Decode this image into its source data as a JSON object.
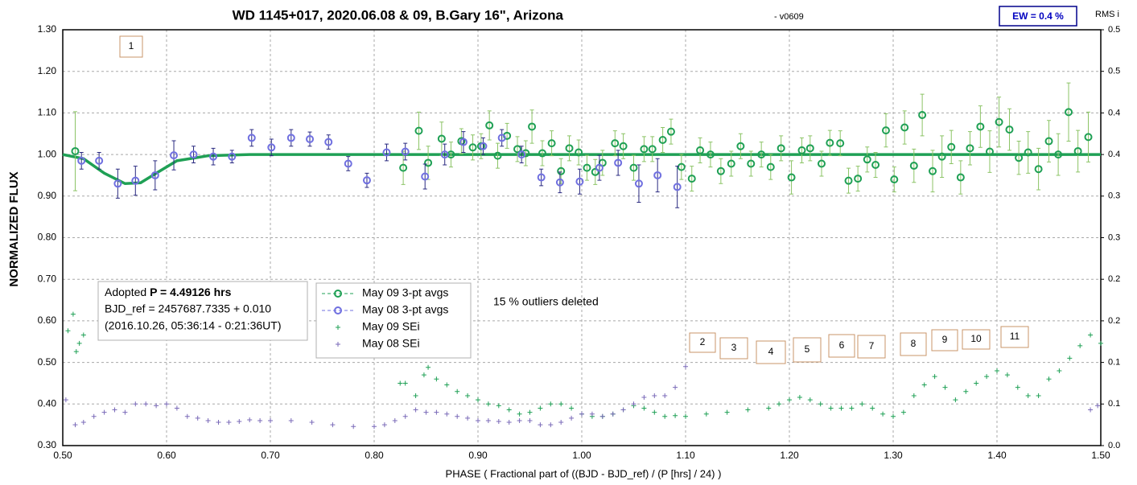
{
  "chart_data": {
    "type": "scatter",
    "title": "WD 1145+017, 2020.06.08 & 09, B.Gary 16\", Arizona",
    "subtitle": "- v0609",
    "x_label": "PHASE ( Fractional part of ((BJD - BJD_ref) / (P [hrs] / 24) )",
    "y_label": "NORMALIZED FLUX",
    "y2_label": "RMS i",
    "grid": true,
    "xlim": [
      0.5,
      1.5
    ],
    "xticks": [
      {
        "value": 0.5,
        "label": "0.50"
      },
      {
        "value": 0.6,
        "label": "0.60"
      },
      {
        "value": 0.7,
        "label": "0.70"
      },
      {
        "value": 0.8,
        "label": "0.80"
      },
      {
        "value": 0.9,
        "label": "0.90"
      },
      {
        "value": 1.0,
        "label": "1.00"
      },
      {
        "value": 1.1,
        "label": "1.10"
      },
      {
        "value": 1.2,
        "label": "1.20"
      },
      {
        "value": 1.3,
        "label": "1.30"
      },
      {
        "value": 1.4,
        "label": "1.40"
      },
      {
        "value": 1.5,
        "label": "1.50"
      }
    ],
    "ylim": [
      0.3,
      1.3
    ],
    "yticks": [
      {
        "value": 0.3,
        "label": "0.30"
      },
      {
        "value": 0.4,
        "label": "0.40"
      },
      {
        "value": 0.5,
        "label": "0.50"
      },
      {
        "value": 0.6,
        "label": "0.60"
      },
      {
        "value": 0.7,
        "label": "0.70"
      },
      {
        "value": 0.8,
        "label": "0.80"
      },
      {
        "value": 0.9,
        "label": "0.90"
      },
      {
        "value": 1.0,
        "label": "1.00"
      },
      {
        "value": 1.1,
        "label": "1.10"
      },
      {
        "value": 1.2,
        "label": "1.20"
      },
      {
        "value": 1.3,
        "label": "1.30"
      }
    ],
    "y2lim": [
      0,
      0.5
    ],
    "y2ticks": [
      {
        "value": 0,
        "label": "0.0"
      },
      {
        "value": 0.05,
        "label": "0.1"
      },
      0.1,
      {
        "value": 0.15,
        "label": "0.2"
      },
      0.2,
      {
        "value": 0.25,
        "label": "0.3"
      },
      0.3,
      {
        "value": 0.35,
        "label": "0.4"
      },
      0.4,
      {
        "value": 0.45,
        "label": "0.5"
      },
      0.5
    ],
    "series": [
      {
        "name": "May 09 3-pt avgs",
        "color": "#1fa055",
        "bar_color": "#8cc466",
        "marker": "circle",
        "x": [
          0.512,
          0.828,
          0.843,
          0.852,
          0.865,
          0.874,
          0.884,
          0.895,
          0.903,
          0.911,
          0.919,
          0.928,
          0.938,
          0.946,
          0.952,
          0.962,
          0.971,
          0.98,
          0.988,
          0.997,
          1.005,
          1.013,
          1.02,
          1.032,
          1.04,
          1.05,
          1.06,
          1.068,
          1.078,
          1.086,
          1.096,
          1.106,
          1.114,
          1.124,
          1.134,
          1.144,
          1.153,
          1.163,
          1.173,
          1.182,
          1.192,
          1.202,
          1.212,
          1.22,
          1.231,
          1.239,
          1.249,
          1.257,
          1.266,
          1.275,
          1.283,
          1.293,
          1.301,
          1.311,
          1.32,
          1.328,
          1.338,
          1.347,
          1.356,
          1.365,
          1.374,
          1.384,
          1.393,
          1.402,
          1.412,
          1.421,
          1.43,
          1.44,
          1.45,
          1.459,
          1.469,
          1.478,
          1.488
        ],
        "values": [
          1.008,
          0.968,
          1.057,
          0.98,
          1.038,
          1.0,
          1.032,
          1.017,
          1.02,
          1.07,
          0.997,
          1.045,
          1.013,
          1.003,
          1.067,
          1.003,
          1.027,
          0.96,
          1.015,
          1.005,
          0.968,
          0.958,
          0.98,
          1.027,
          1.02,
          0.968,
          1.013,
          1.013,
          1.035,
          1.055,
          0.97,
          0.942,
          1.01,
          1.0,
          0.96,
          0.978,
          1.02,
          0.978,
          1.0,
          0.97,
          1.015,
          0.945,
          1.01,
          1.015,
          0.978,
          1.028,
          1.027,
          0.937,
          0.942,
          0.988,
          0.975,
          1.058,
          0.94,
          1.065,
          0.973,
          1.095,
          0.96,
          0.995,
          1.018,
          0.945,
          1.015,
          1.067,
          1.007,
          1.078,
          1.06,
          0.992,
          1.005,
          0.965,
          1.032,
          1.0,
          1.102,
          1.008,
          1.042
        ],
        "errors": [
          0.095,
          0.04,
          0.045,
          0.04,
          0.04,
          0.03,
          0.03,
          0.03,
          0.03,
          0.035,
          0.03,
          0.03,
          0.03,
          0.03,
          0.04,
          0.03,
          0.03,
          0.03,
          0.03,
          0.03,
          0.03,
          0.03,
          0.03,
          0.03,
          0.03,
          0.03,
          0.03,
          0.03,
          0.03,
          0.03,
          0.03,
          0.03,
          0.03,
          0.03,
          0.03,
          0.03,
          0.03,
          0.03,
          0.03,
          0.03,
          0.03,
          0.04,
          0.03,
          0.03,
          0.03,
          0.03,
          0.03,
          0.03,
          0.03,
          0.03,
          0.03,
          0.04,
          0.03,
          0.04,
          0.04,
          0.05,
          0.05,
          0.05,
          0.04,
          0.04,
          0.04,
          0.05,
          0.05,
          0.06,
          0.05,
          0.04,
          0.05,
          0.05,
          0.05,
          0.05,
          0.07,
          0.05,
          0.06
        ]
      },
      {
        "name": "May 08 3-pt avgs",
        "color": "#7070e0",
        "bar_color": "#2a2a80",
        "marker": "circle",
        "x": [
          0.518,
          0.535,
          0.553,
          0.57,
          0.589,
          0.607,
          0.626,
          0.645,
          0.663,
          0.682,
          0.701,
          0.72,
          0.738,
          0.756,
          0.775,
          0.793,
          0.812,
          0.83,
          0.849,
          0.868,
          0.886,
          0.905,
          0.923,
          0.942,
          0.961,
          0.979,
          0.998,
          1.017,
          1.035,
          1.055,
          1.073,
          1.092
        ],
        "values": [
          0.985,
          0.985,
          0.93,
          0.937,
          0.95,
          0.998,
          1.0,
          0.995,
          0.995,
          1.04,
          1.017,
          1.04,
          1.037,
          1.03,
          0.978,
          0.938,
          1.005,
          1.007,
          0.947,
          1.0,
          1.03,
          1.02,
          1.04,
          1.0,
          0.945,
          0.933,
          0.935,
          0.968,
          0.98,
          0.93,
          0.95,
          0.922
        ],
        "errors": [
          0.02,
          0.02,
          0.035,
          0.035,
          0.035,
          0.035,
          0.02,
          0.02,
          0.015,
          0.02,
          0.02,
          0.02,
          0.017,
          0.017,
          0.017,
          0.017,
          0.02,
          0.02,
          0.03,
          0.025,
          0.025,
          0.02,
          0.02,
          0.02,
          0.02,
          0.025,
          0.03,
          0.03,
          0.03,
          0.045,
          0.04,
          0.05
        ]
      },
      {
        "name": "May 09 SEi",
        "color": "#1fa055",
        "marker": "plus",
        "axis": "y2",
        "x": [
          0.505,
          0.51,
          0.513,
          0.516,
          0.52,
          0.825,
          0.83,
          0.84,
          0.848,
          0.852,
          0.86,
          0.87,
          0.88,
          0.89,
          0.9,
          0.91,
          0.92,
          0.93,
          0.94,
          0.95,
          0.96,
          0.97,
          0.98,
          0.99,
          1.0,
          1.01,
          1.02,
          1.03,
          1.04,
          1.05,
          1.06,
          1.07,
          1.08,
          1.09,
          1.1,
          1.12,
          1.14,
          1.16,
          1.18,
          1.19,
          1.2,
          1.21,
          1.22,
          1.23,
          1.24,
          1.25,
          1.26,
          1.27,
          1.28,
          1.29,
          1.3,
          1.31,
          1.32,
          1.33,
          1.34,
          1.35,
          1.36,
          1.37,
          1.38,
          1.39,
          1.4,
          1.41,
          1.42,
          1.43,
          1.44,
          1.45,
          1.46,
          1.47,
          1.48,
          1.49,
          1.5
        ],
        "values": [
          0.138,
          0.158,
          0.113,
          0.123,
          0.133,
          0.075,
          0.075,
          0.06,
          0.085,
          0.094,
          0.08,
          0.073,
          0.065,
          0.06,
          0.055,
          0.05,
          0.048,
          0.043,
          0.038,
          0.04,
          0.045,
          0.05,
          0.05,
          0.045,
          0.038,
          0.035,
          0.035,
          0.038,
          0.043,
          0.048,
          0.045,
          0.04,
          0.035,
          0.036,
          0.035,
          0.038,
          0.04,
          0.043,
          0.045,
          0.05,
          0.055,
          0.058,
          0.055,
          0.05,
          0.045,
          0.045,
          0.045,
          0.05,
          0.045,
          0.038,
          0.035,
          0.04,
          0.06,
          0.073,
          0.083,
          0.07,
          0.055,
          0.065,
          0.075,
          0.083,
          0.09,
          0.085,
          0.07,
          0.06,
          0.06,
          0.08,
          0.09,
          0.105,
          0.12,
          0.133,
          0.123
        ]
      },
      {
        "name": "May 08 SEi",
        "color": "#7a6ab8",
        "marker": "plus",
        "axis": "y2",
        "x": [
          0.503,
          0.512,
          0.52,
          0.53,
          0.54,
          0.55,
          0.56,
          0.57,
          0.58,
          0.59,
          0.6,
          0.61,
          0.62,
          0.63,
          0.64,
          0.65,
          0.66,
          0.67,
          0.68,
          0.69,
          0.7,
          0.72,
          0.74,
          0.76,
          0.78,
          0.8,
          0.81,
          0.82,
          0.83,
          0.84,
          0.85,
          0.86,
          0.87,
          0.88,
          0.89,
          0.9,
          0.91,
          0.92,
          0.93,
          0.94,
          0.95,
          0.96,
          0.97,
          0.98,
          0.99,
          1.0,
          1.01,
          1.02,
          1.03,
          1.04,
          1.05,
          1.06,
          1.07,
          1.08,
          1.09,
          1.1,
          1.49,
          1.497
        ],
        "values": [
          0.055,
          0.025,
          0.028,
          0.035,
          0.04,
          0.043,
          0.04,
          0.05,
          0.05,
          0.048,
          0.05,
          0.045,
          0.035,
          0.033,
          0.03,
          0.028,
          0.028,
          0.029,
          0.031,
          0.03,
          0.03,
          0.03,
          0.028,
          0.025,
          0.023,
          0.023,
          0.025,
          0.03,
          0.035,
          0.043,
          0.04,
          0.04,
          0.038,
          0.035,
          0.033,
          0.03,
          0.03,
          0.029,
          0.028,
          0.03,
          0.03,
          0.025,
          0.025,
          0.028,
          0.033,
          0.038,
          0.038,
          0.035,
          0.038,
          0.043,
          0.05,
          0.058,
          0.06,
          0.06,
          0.07,
          0.095,
          0.043,
          0.048
        ]
      }
    ],
    "model": {
      "color": "#1fa055",
      "x": [
        0.5,
        0.52,
        0.54,
        0.56,
        0.575,
        0.59,
        0.61,
        0.64,
        0.68,
        1.5
      ],
      "values": [
        1.0,
        0.99,
        0.955,
        0.93,
        0.932,
        0.955,
        0.985,
        0.997,
        1.0,
        1.0
      ]
    },
    "annotations": {
      "ew": "EW = 0.4 %",
      "adopted": "Adopted",
      "period": "P = 4.49126 hrs",
      "bjd_ref": "BJD_ref = 2457687.7335 + 0.010",
      "date": "(2016.10.26, 05:36:14 - 0:21:36UT)",
      "outliers": "15 % outliers deleted",
      "boxes": [
        "1",
        "2",
        "3",
        "4",
        "5",
        "6",
        "7",
        "8",
        "9",
        "10",
        "11"
      ]
    }
  }
}
